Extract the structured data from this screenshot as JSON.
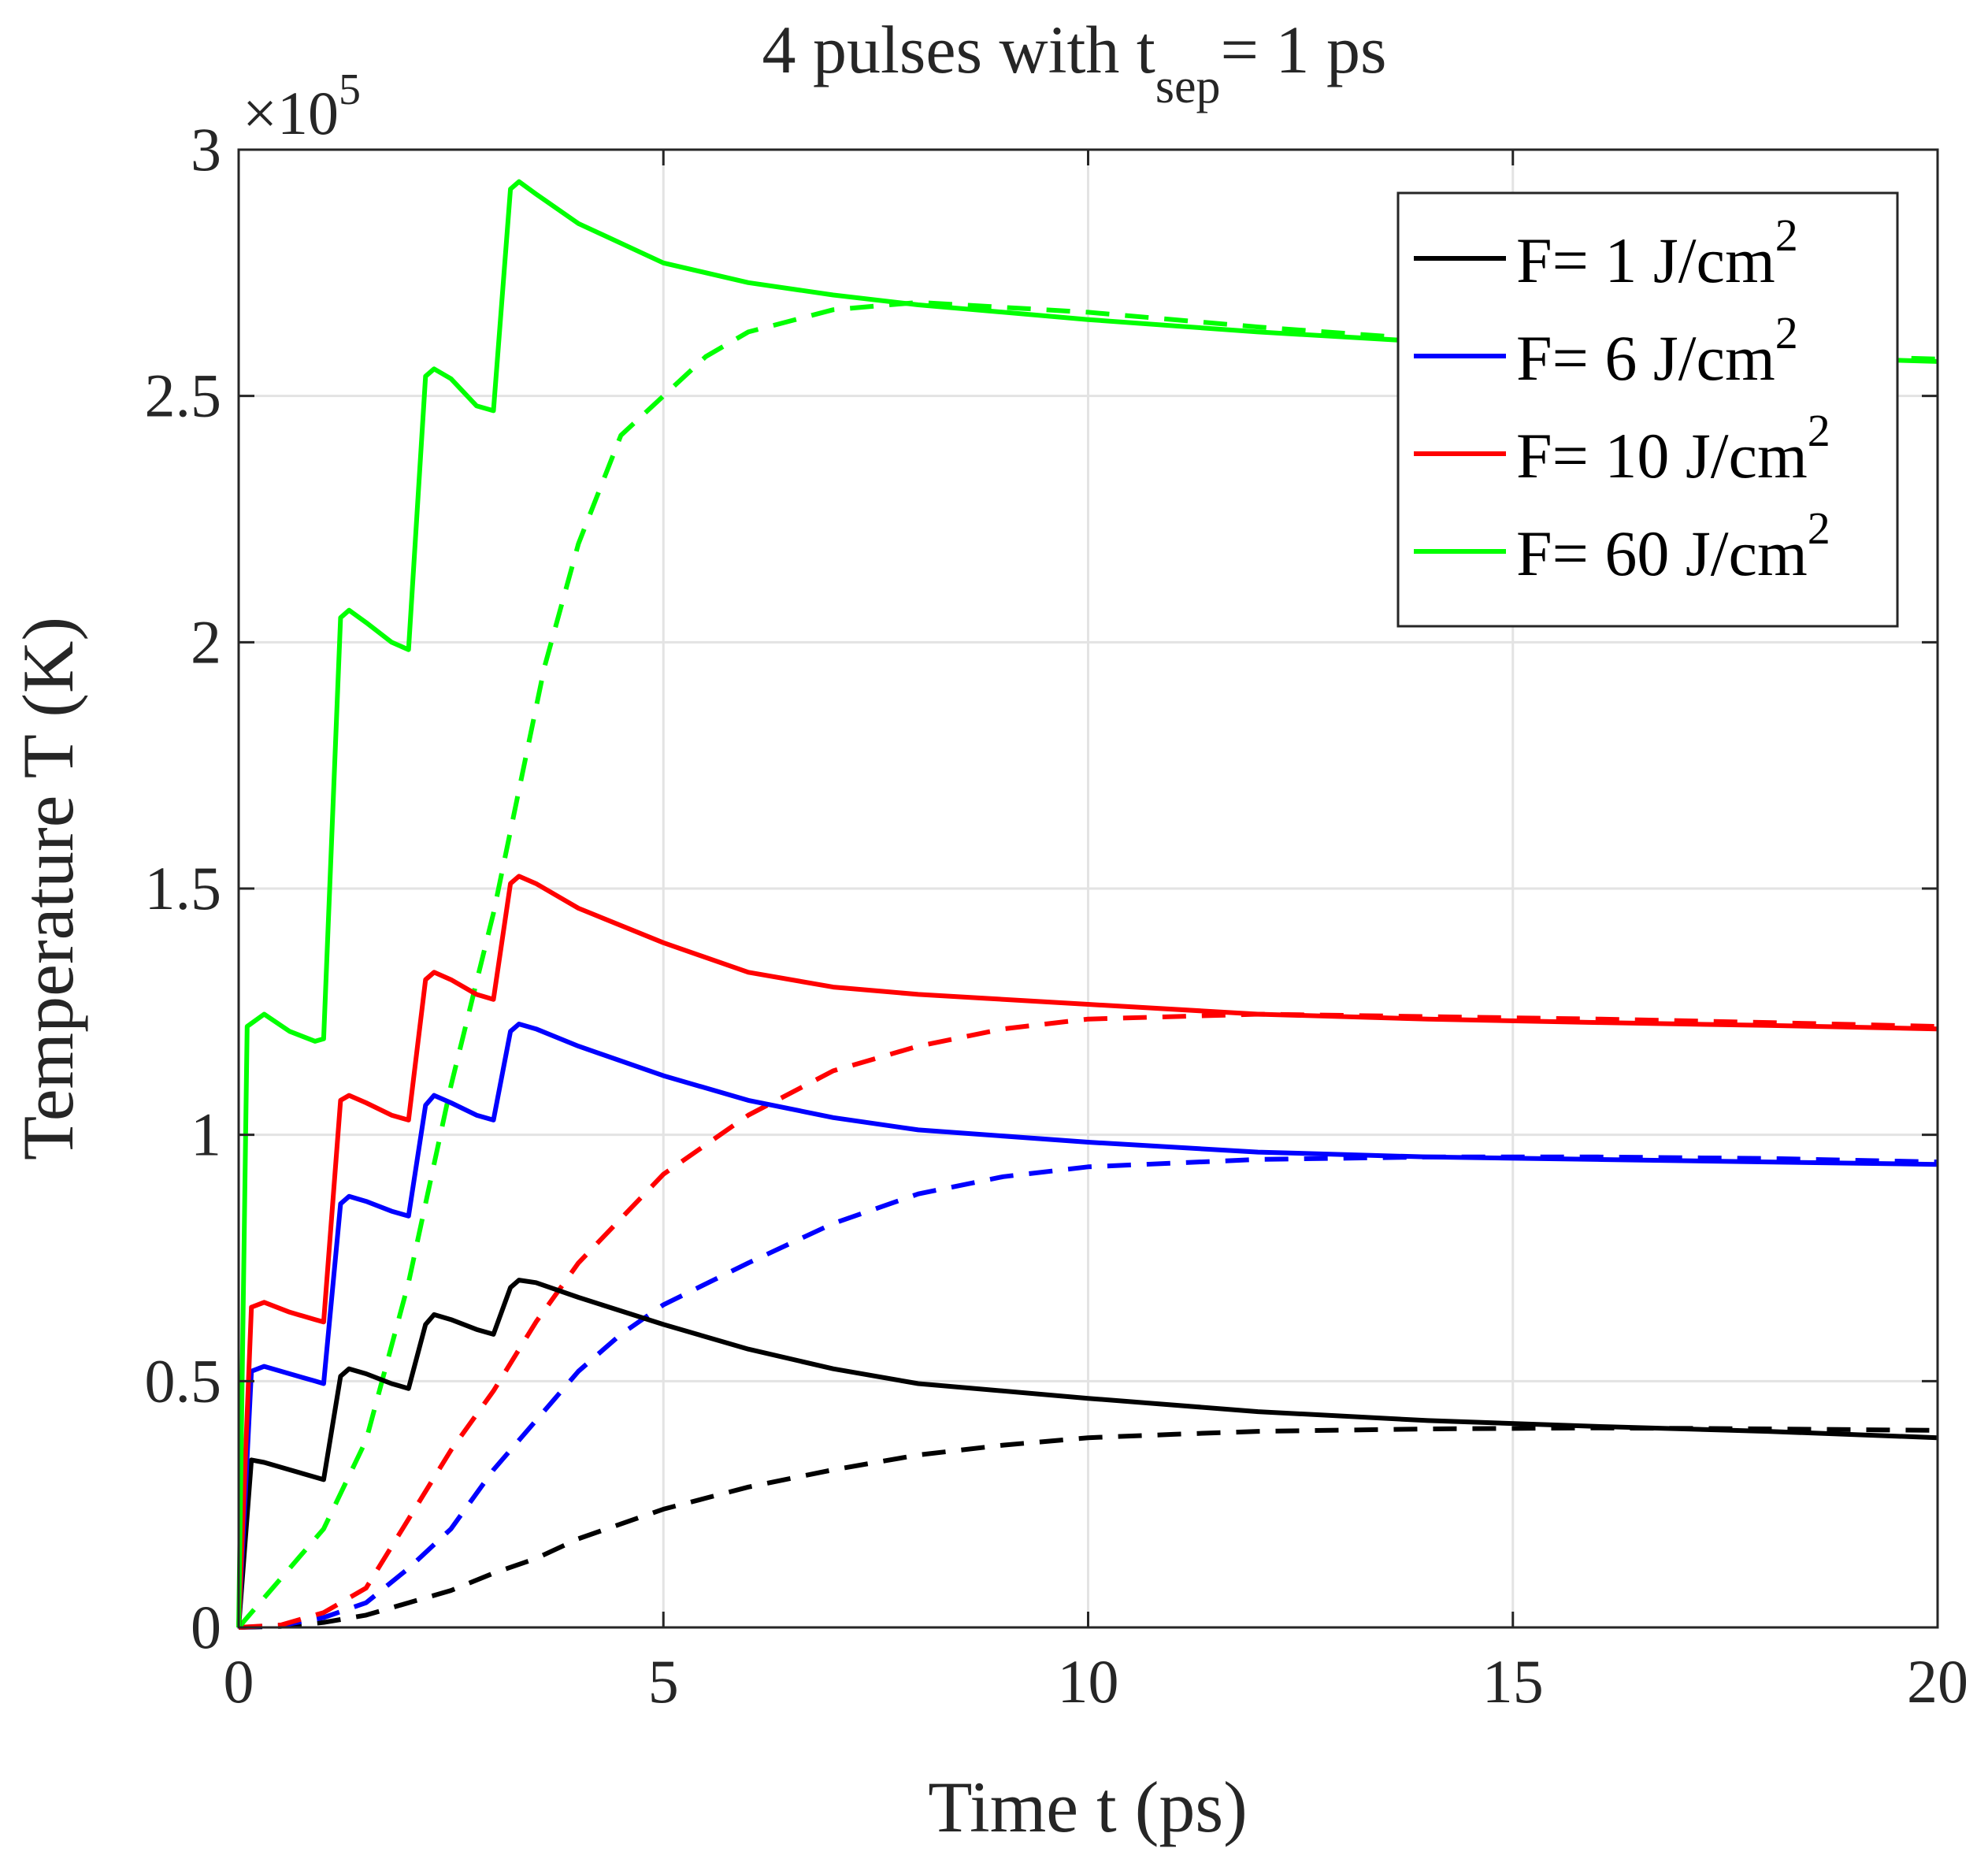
{
  "chart_data": {
    "type": "line",
    "title": {
      "main": "4 pulses with t",
      "sub": "sep",
      "tail": "= 1 ps"
    },
    "xlabel": "Time t (ps)",
    "ylabel": "Temperature T (K)",
    "multiplier": {
      "base": "×10",
      "exp": "5"
    },
    "xlim": [
      0,
      20
    ],
    "ylim": [
      0,
      3
    ],
    "xticks": [
      0,
      5,
      10,
      15,
      20
    ],
    "xtick_labels": [
      "0",
      "5",
      "10",
      "15",
      "20"
    ],
    "yticks": [
      0,
      0.5,
      1,
      1.5,
      2,
      2.5,
      3
    ],
    "ytick_labels": [
      "0",
      "0.5",
      "1",
      "1.5",
      "2",
      "2.5",
      "3"
    ],
    "grid": true,
    "legend_position": "top-right",
    "series": [
      {
        "name": "F= 1 J/cm2",
        "legend_text": "F= 1 J/cm",
        "legend_sup": "2",
        "color": "#000000",
        "solid": [
          [
            0,
            0
          ],
          [
            0.15,
            0.34
          ],
          [
            0.3,
            0.335
          ],
          [
            0.6,
            0.32
          ],
          [
            0.9,
            0.305
          ],
          [
            1.0,
            0.3
          ],
          [
            1.2,
            0.51
          ],
          [
            1.3,
            0.525
          ],
          [
            1.5,
            0.515
          ],
          [
            1.8,
            0.495
          ],
          [
            2.0,
            0.485
          ],
          [
            2.2,
            0.615
          ],
          [
            2.3,
            0.635
          ],
          [
            2.5,
            0.625
          ],
          [
            2.8,
            0.605
          ],
          [
            3.0,
            0.595
          ],
          [
            3.2,
            0.69
          ],
          [
            3.3,
            0.705
          ],
          [
            3.5,
            0.7
          ],
          [
            4,
            0.67
          ],
          [
            5,
            0.615
          ],
          [
            6,
            0.565
          ],
          [
            7,
            0.525
          ],
          [
            8,
            0.495
          ],
          [
            10,
            0.465
          ],
          [
            12,
            0.438
          ],
          [
            14,
            0.42
          ],
          [
            16,
            0.408
          ],
          [
            18,
            0.398
          ],
          [
            20,
            0.385
          ]
        ],
        "dashed": [
          [
            0,
            0
          ],
          [
            0.5,
            0.002
          ],
          [
            1,
            0.01
          ],
          [
            1.5,
            0.025
          ],
          [
            2,
            0.05
          ],
          [
            2.5,
            0.075
          ],
          [
            3,
            0.11
          ],
          [
            3.5,
            0.14
          ],
          [
            4,
            0.18
          ],
          [
            5,
            0.24
          ],
          [
            6,
            0.285
          ],
          [
            7,
            0.32
          ],
          [
            8,
            0.35
          ],
          [
            9,
            0.37
          ],
          [
            10,
            0.385
          ],
          [
            11,
            0.392
          ],
          [
            12,
            0.398
          ],
          [
            14,
            0.403
          ],
          [
            16,
            0.405
          ],
          [
            18,
            0.403
          ],
          [
            20,
            0.4
          ]
        ]
      },
      {
        "name": "F= 6 J/cm2",
        "legend_text": "F= 6 J/cm",
        "legend_sup": "2",
        "color": "#0000ff",
        "solid": [
          [
            0,
            0
          ],
          [
            0.15,
            0.52
          ],
          [
            0.3,
            0.53
          ],
          [
            0.6,
            0.515
          ],
          [
            0.9,
            0.5
          ],
          [
            1.0,
            0.495
          ],
          [
            1.2,
            0.86
          ],
          [
            1.3,
            0.875
          ],
          [
            1.5,
            0.865
          ],
          [
            1.8,
            0.845
          ],
          [
            2.0,
            0.835
          ],
          [
            2.2,
            1.06
          ],
          [
            2.3,
            1.08
          ],
          [
            2.5,
            1.065
          ],
          [
            2.8,
            1.04
          ],
          [
            3.0,
            1.03
          ],
          [
            3.2,
            1.21
          ],
          [
            3.3,
            1.225
          ],
          [
            3.5,
            1.215
          ],
          [
            4,
            1.18
          ],
          [
            5,
            1.12
          ],
          [
            6,
            1.07
          ],
          [
            7,
            1.035
          ],
          [
            8,
            1.01
          ],
          [
            10,
            0.985
          ],
          [
            12,
            0.965
          ],
          [
            14,
            0.955
          ],
          [
            16,
            0.95
          ],
          [
            18,
            0.945
          ],
          [
            20,
            0.94
          ]
        ],
        "dashed": [
          [
            0,
            0
          ],
          [
            0.5,
            0.004
          ],
          [
            1,
            0.02
          ],
          [
            1.5,
            0.05
          ],
          [
            2,
            0.12
          ],
          [
            2.5,
            0.2
          ],
          [
            3,
            0.32
          ],
          [
            3.5,
            0.42
          ],
          [
            4,
            0.52
          ],
          [
            4.5,
            0.595
          ],
          [
            5,
            0.655
          ],
          [
            6,
            0.74
          ],
          [
            7,
            0.82
          ],
          [
            8,
            0.88
          ],
          [
            9,
            0.915
          ],
          [
            10,
            0.935
          ],
          [
            12,
            0.95
          ],
          [
            14,
            0.955
          ],
          [
            16,
            0.955
          ],
          [
            18,
            0.952
          ],
          [
            20,
            0.945
          ]
        ]
      },
      {
        "name": "F= 10 J/cm2",
        "legend_text": "F= 10 J/cm",
        "legend_sup": "2",
        "color": "#ff0000",
        "solid": [
          [
            0,
            0
          ],
          [
            0.15,
            0.65
          ],
          [
            0.3,
            0.66
          ],
          [
            0.6,
            0.64
          ],
          [
            0.9,
            0.625
          ],
          [
            1.0,
            0.62
          ],
          [
            1.2,
            1.07
          ],
          [
            1.3,
            1.08
          ],
          [
            1.5,
            1.065
          ],
          [
            1.8,
            1.04
          ],
          [
            2.0,
            1.03
          ],
          [
            2.2,
            1.315
          ],
          [
            2.3,
            1.33
          ],
          [
            2.5,
            1.315
          ],
          [
            2.8,
            1.285
          ],
          [
            3.0,
            1.275
          ],
          [
            3.2,
            1.51
          ],
          [
            3.3,
            1.525
          ],
          [
            3.5,
            1.51
          ],
          [
            4,
            1.46
          ],
          [
            5,
            1.39
          ],
          [
            6,
            1.33
          ],
          [
            7,
            1.3
          ],
          [
            8,
            1.285
          ],
          [
            10,
            1.265
          ],
          [
            12,
            1.245
          ],
          [
            14,
            1.235
          ],
          [
            16,
            1.228
          ],
          [
            18,
            1.222
          ],
          [
            20,
            1.215
          ]
        ],
        "dashed": [
          [
            0,
            0
          ],
          [
            0.5,
            0.005
          ],
          [
            1,
            0.03
          ],
          [
            1.5,
            0.08
          ],
          [
            2,
            0.22
          ],
          [
            2.5,
            0.36
          ],
          [
            3,
            0.48
          ],
          [
            3.5,
            0.62
          ],
          [
            4,
            0.74
          ],
          [
            4.5,
            0.83
          ],
          [
            5,
            0.92
          ],
          [
            6,
            1.04
          ],
          [
            7,
            1.13
          ],
          [
            8,
            1.18
          ],
          [
            9,
            1.215
          ],
          [
            10,
            1.235
          ],
          [
            12,
            1.245
          ],
          [
            14,
            1.24
          ],
          [
            16,
            1.235
          ],
          [
            18,
            1.228
          ],
          [
            20,
            1.22
          ]
        ]
      },
      {
        "name": "F= 60 J/cm2",
        "legend_text": "F= 60 J/cm",
        "legend_sup": "2",
        "color": "#00ff00",
        "solid": [
          [
            0,
            0
          ],
          [
            0.1,
            1.22
          ],
          [
            0.3,
            1.245
          ],
          [
            0.6,
            1.21
          ],
          [
            0.9,
            1.19
          ],
          [
            1.0,
            1.195
          ],
          [
            1.2,
            2.05
          ],
          [
            1.3,
            2.065
          ],
          [
            1.5,
            2.04
          ],
          [
            1.8,
            2.0
          ],
          [
            2.0,
            1.985
          ],
          [
            2.2,
            2.54
          ],
          [
            2.3,
            2.555
          ],
          [
            2.5,
            2.535
          ],
          [
            2.8,
            2.48
          ],
          [
            3.0,
            2.47
          ],
          [
            3.2,
            2.92
          ],
          [
            3.3,
            2.935
          ],
          [
            3.5,
            2.91
          ],
          [
            4,
            2.85
          ],
          [
            5,
            2.77
          ],
          [
            6,
            2.73
          ],
          [
            7,
            2.705
          ],
          [
            8,
            2.685
          ],
          [
            10,
            2.655
          ],
          [
            12,
            2.63
          ],
          [
            14,
            2.61
          ],
          [
            16,
            2.595
          ],
          [
            18,
            2.58
          ],
          [
            20,
            2.57
          ]
        ],
        "dashed": [
          [
            0,
            0
          ],
          [
            0.5,
            0.1
          ],
          [
            1,
            0.2
          ],
          [
            1.5,
            0.38
          ],
          [
            2,
            0.7
          ],
          [
            2.5,
            1.1
          ],
          [
            3,
            1.45
          ],
          [
            3.3,
            1.7
          ],
          [
            3.6,
            1.95
          ],
          [
            4,
            2.2
          ],
          [
            4.5,
            2.42
          ],
          [
            5,
            2.5
          ],
          [
            5.5,
            2.58
          ],
          [
            6,
            2.63
          ],
          [
            7,
            2.675
          ],
          [
            8,
            2.69
          ],
          [
            10,
            2.67
          ],
          [
            12,
            2.64
          ],
          [
            14,
            2.615
          ],
          [
            16,
            2.6
          ],
          [
            18,
            2.585
          ],
          [
            20,
            2.575
          ]
        ]
      }
    ]
  }
}
